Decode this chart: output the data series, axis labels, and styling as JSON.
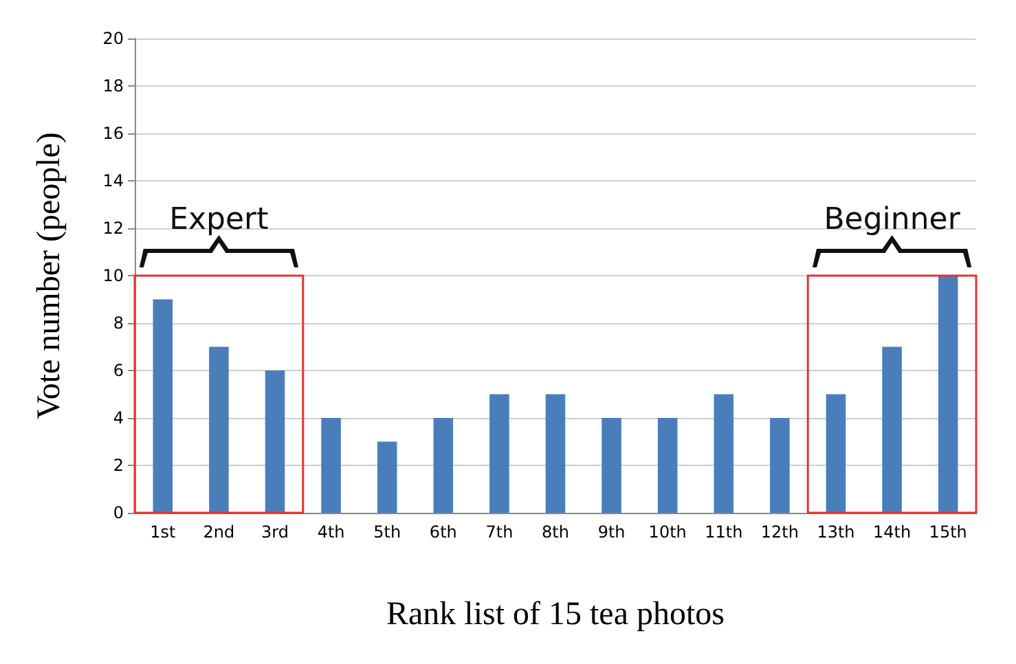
{
  "chart_data": {
    "type": "bar",
    "xlabel": "Rank list of 15 tea photos",
    "ylabel": "Vote number (people)",
    "categories": [
      "1st",
      "2nd",
      "3rd",
      "4th",
      "5th",
      "6th",
      "7th",
      "8th",
      "9th",
      "10th",
      "11th",
      "12th",
      "13th",
      "14th",
      "15th"
    ],
    "values": [
      9,
      7,
      6,
      4,
      3,
      4,
      5,
      5,
      4,
      4,
      5,
      4,
      5,
      7,
      10
    ],
    "color": "#4a7ebb",
    "ylim": [
      0,
      20
    ],
    "yticks": [
      0,
      2,
      4,
      6,
      8,
      10,
      12,
      14,
      16,
      18,
      20
    ],
    "grid": "y",
    "annotations": [
      "Expert",
      "Beginner"
    ]
  }
}
